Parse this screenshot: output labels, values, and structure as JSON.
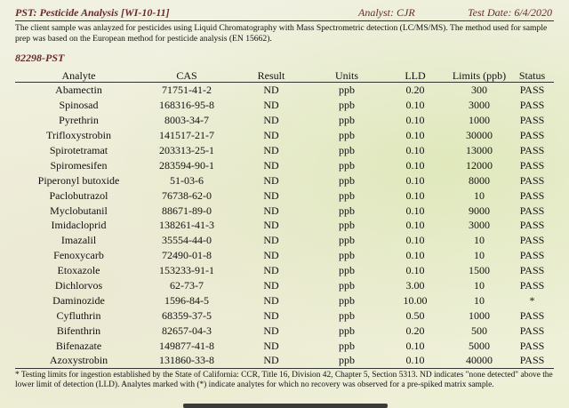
{
  "header": {
    "title": "PST: Pesticide Analysis [WI-10-11]",
    "analyst": "Analyst: CJR",
    "test_date": "Test Date: 6/4/2020"
  },
  "intro": "The client sample was anlayzed for pesticides using Liquid Chromatography with Mass Spectrometric detection (LC/MS/MS).  The method used for sample prep was based on the European method for pesticide analysis (EN 15662).",
  "sample_id": "82298-PST",
  "table": {
    "columns": [
      "Analyte",
      "CAS",
      "Result",
      "Units",
      "LLD",
      "Limits (ppb)",
      "Status"
    ],
    "rows": [
      [
        "Abamectin",
        "71751-41-2",
        "ND",
        "ppb",
        "0.20",
        "300",
        "PASS"
      ],
      [
        "Spinosad",
        "168316-95-8",
        "ND",
        "ppb",
        "0.10",
        "3000",
        "PASS"
      ],
      [
        "Pyrethrin",
        "8003-34-7",
        "ND",
        "ppb",
        "0.10",
        "1000",
        "PASS"
      ],
      [
        "Trifloxystrobin",
        "141517-21-7",
        "ND",
        "ppb",
        "0.10",
        "30000",
        "PASS"
      ],
      [
        "Spirotetramat",
        "203313-25-1",
        "ND",
        "ppb",
        "0.10",
        "13000",
        "PASS"
      ],
      [
        "Spiromesifen",
        "283594-90-1",
        "ND",
        "ppb",
        "0.10",
        "12000",
        "PASS"
      ],
      [
        "Piperonyl butoxide",
        "51-03-6",
        "ND",
        "ppb",
        "0.10",
        "8000",
        "PASS"
      ],
      [
        "Paclobutrazol",
        "76738-62-0",
        "ND",
        "ppb",
        "0.10",
        "10",
        "PASS"
      ],
      [
        "Myclobutanil",
        "88671-89-0",
        "ND",
        "ppb",
        "0.10",
        "9000",
        "PASS"
      ],
      [
        "Imidacloprid",
        "138261-41-3",
        "ND",
        "ppb",
        "0.10",
        "3000",
        "PASS"
      ],
      [
        "Imazalil",
        "35554-44-0",
        "ND",
        "ppb",
        "0.10",
        "10",
        "PASS"
      ],
      [
        "Fenoxycarb",
        "72490-01-8",
        "ND",
        "ppb",
        "0.10",
        "10",
        "PASS"
      ],
      [
        "Etoxazole",
        "153233-91-1",
        "ND",
        "ppb",
        "0.10",
        "1500",
        "PASS"
      ],
      [
        "Dichlorvos",
        "62-73-7",
        "ND",
        "ppb",
        "3.00",
        "10",
        "PASS"
      ],
      [
        "Daminozide",
        "1596-84-5",
        "ND",
        "ppb",
        "10.00",
        "10",
        "*"
      ],
      [
        "Cyfluthrin",
        "68359-37-5",
        "ND",
        "ppb",
        "0.50",
        "1000",
        "PASS"
      ],
      [
        "Bifenthrin",
        "82657-04-3",
        "ND",
        "ppb",
        "0.20",
        "500",
        "PASS"
      ],
      [
        "Bifenazate",
        "149877-41-8",
        "ND",
        "ppb",
        "0.10",
        "5000",
        "PASS"
      ],
      [
        "Azoxystrobin",
        "131860-33-8",
        "ND",
        "ppb",
        "0.10",
        "40000",
        "PASS"
      ]
    ]
  },
  "footnote": "* Testing limits for ingestion established by the State of California:  CCR, Title 16, Division 42, Chapter 5, Section 5313.  ND indicates \"none detected\" above the lower limit of detection (LLD).  Analytes marked with (*) indicate analytes for which no recovery was observed for a pre-spiked matrix sample."
}
